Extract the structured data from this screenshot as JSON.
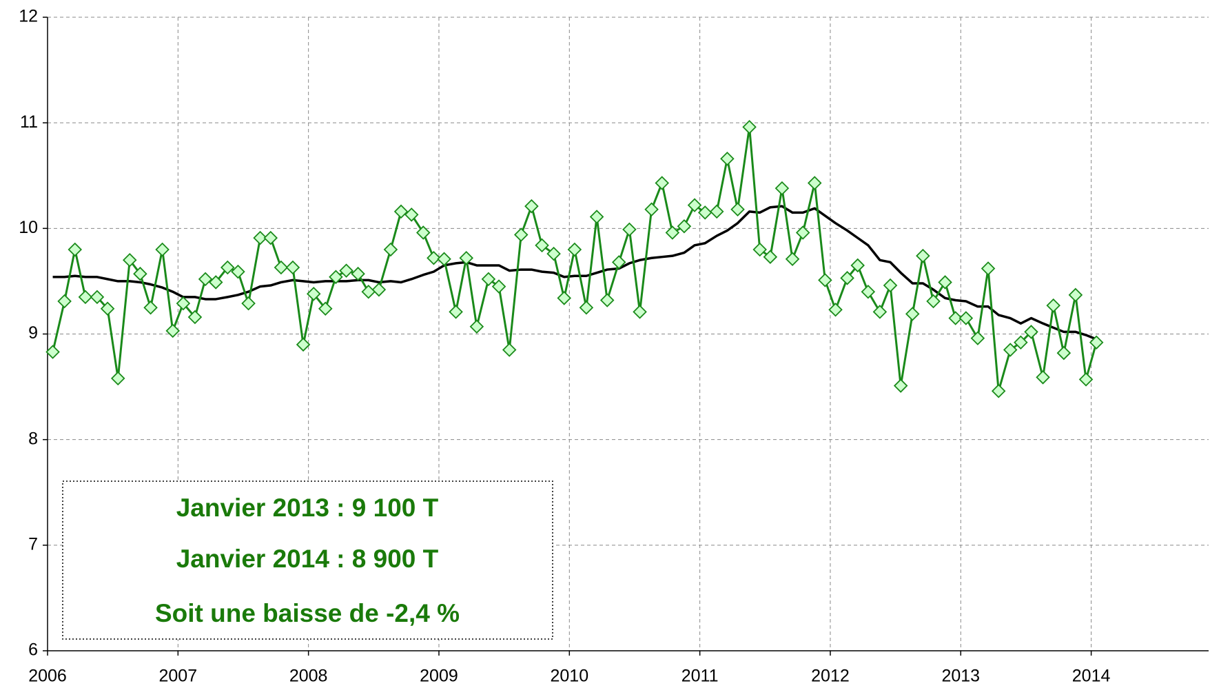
{
  "chart_data": {
    "type": "line",
    "annotations": [
      "Janvier 2013 : 9 100 T",
      "Janvier 2014 : 8 900 T",
      "Soit une baisse de -2,4 %"
    ],
    "x": [
      2006.04,
      2006.13,
      2006.21,
      2006.29,
      2006.38,
      2006.46,
      2006.54,
      2006.63,
      2006.71,
      2006.79,
      2006.88,
      2006.96,
      2007.04,
      2007.13,
      2007.21,
      2007.29,
      2007.38,
      2007.46,
      2007.54,
      2007.63,
      2007.71,
      2007.79,
      2007.88,
      2007.96,
      2008.04,
      2008.13,
      2008.21,
      2008.29,
      2008.38,
      2008.46,
      2008.54,
      2008.63,
      2008.71,
      2008.79,
      2008.88,
      2008.96,
      2009.04,
      2009.13,
      2009.21,
      2009.29,
      2009.38,
      2009.46,
      2009.54,
      2009.63,
      2009.71,
      2009.79,
      2009.88,
      2009.96,
      2010.04,
      2010.13,
      2010.21,
      2010.29,
      2010.38,
      2010.46,
      2010.54,
      2010.63,
      2010.71,
      2010.79,
      2010.88,
      2010.96,
      2011.04,
      2011.13,
      2011.21,
      2011.29,
      2011.38,
      2011.46,
      2011.54,
      2011.63,
      2011.71,
      2011.79,
      2011.88,
      2011.96,
      2012.04,
      2012.13,
      2012.21,
      2012.29,
      2012.38,
      2012.46,
      2012.54,
      2012.63,
      2012.71,
      2012.79,
      2012.88,
      2012.96,
      2013.04,
      2013.13,
      2013.21,
      2013.29,
      2013.38,
      2013.46,
      2013.54,
      2013.63,
      2013.71,
      2013.79,
      2013.88,
      2013.96,
      2014.04
    ],
    "series": [
      {
        "color": "#1a8a1a",
        "marker_fill": "#ccffcc",
        "marker": "diamond",
        "values": [
          8.83,
          9.31,
          9.8,
          9.35,
          9.35,
          9.24,
          8.58,
          9.7,
          9.57,
          9.25,
          9.8,
          9.03,
          9.29,
          9.16,
          9.52,
          9.49,
          9.63,
          9.59,
          9.29,
          9.91,
          9.91,
          9.63,
          9.63,
          8.9,
          9.38,
          9.24,
          9.54,
          9.6,
          9.57,
          9.4,
          9.42,
          9.8,
          10.16,
          10.13,
          9.96,
          9.72,
          9.71,
          9.21,
          9.72,
          9.07,
          9.52,
          9.45,
          8.85,
          9.94,
          10.21,
          9.84,
          9.76,
          9.34,
          9.8,
          9.25,
          10.11,
          9.32,
          9.68,
          9.99,
          9.21,
          10.18,
          10.43,
          9.96,
          10.02,
          10.22,
          10.15,
          10.16,
          10.66,
          10.18,
          10.96,
          9.8,
          9.73,
          10.38,
          9.71,
          9.96,
          10.43,
          9.51,
          9.23,
          9.53,
          9.65,
          9.4,
          9.21,
          9.46,
          8.51,
          9.19,
          9.74,
          9.31,
          9.49,
          9.15,
          9.15,
          8.96,
          9.62,
          8.46,
          8.85,
          8.92,
          9.02,
          8.59,
          9.27,
          8.82,
          9.37,
          8.57,
          8.92
        ]
      },
      {
        "color": "#000000",
        "values": [
          9.54,
          9.54,
          9.55,
          9.54,
          9.54,
          9.52,
          9.5,
          9.5,
          9.49,
          9.47,
          9.44,
          9.4,
          9.35,
          9.35,
          9.33,
          9.33,
          9.35,
          9.37,
          9.4,
          9.45,
          9.46,
          9.49,
          9.51,
          9.5,
          9.49,
          9.5,
          9.5,
          9.5,
          9.51,
          9.51,
          9.49,
          9.5,
          9.49,
          9.52,
          9.56,
          9.59,
          9.65,
          9.67,
          9.68,
          9.65,
          9.65,
          9.65,
          9.6,
          9.61,
          9.61,
          9.59,
          9.58,
          9.54,
          9.55,
          9.55,
          9.58,
          9.61,
          9.62,
          9.67,
          9.7,
          9.72,
          9.73,
          9.74,
          9.77,
          9.84,
          9.86,
          9.93,
          9.98,
          10.05,
          10.16,
          10.15,
          10.2,
          10.21,
          10.15,
          10.15,
          10.19,
          10.12,
          10.05,
          9.98,
          9.91,
          9.84,
          9.7,
          9.68,
          9.58,
          9.48,
          9.48,
          9.42,
          9.34,
          9.32,
          9.31,
          9.26,
          9.26,
          9.18,
          9.15,
          9.1,
          9.15,
          9.1,
          9.06,
          9.02,
          9.02,
          8.99,
          8.95
        ]
      }
    ],
    "xlim": [
      2006,
      2014.9
    ],
    "xticks": [
      2006,
      2007,
      2008,
      2009,
      2010,
      2011,
      2012,
      2013,
      2014
    ],
    "ylim": [
      6,
      12
    ],
    "yticks": [
      6,
      7,
      8,
      9,
      10,
      11,
      12
    ],
    "grid": true
  }
}
